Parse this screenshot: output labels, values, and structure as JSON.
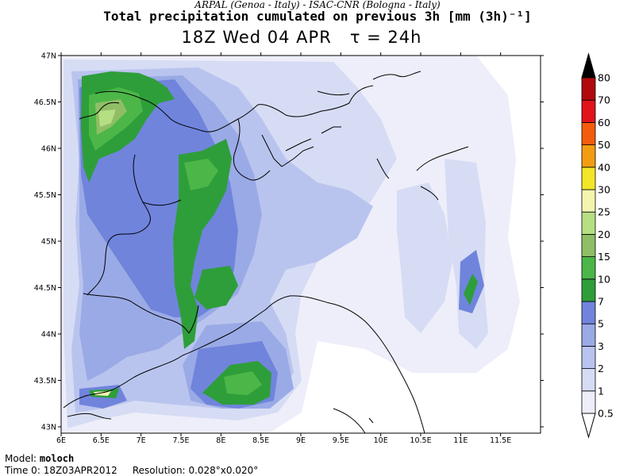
{
  "header": {
    "credit_line": "ARPAL (Genoa - Italy)  -  ISAC-CNR (Bologna - Italy)",
    "title_line": "Total precipitation cumulated on previous 3h [mm (3h)⁻¹]",
    "time_line": "18Z Wed 04 APR",
    "tau_label": "τ = 24h"
  },
  "map": {
    "lat_labels": [
      "47N",
      "46.5N",
      "46N",
      "45.5N",
      "45N",
      "44.5N",
      "44N",
      "43.5N",
      "43N"
    ],
    "lon_labels": [
      "6E",
      "6.5E",
      "7E",
      "7.5E",
      "8E",
      "8.5E",
      "9E",
      "9.5E",
      "10E",
      "10.5E",
      "11E",
      "11.5E"
    ],
    "lat_values": [
      47,
      46.5,
      46,
      45.5,
      45,
      44.5,
      44,
      43.5,
      43
    ],
    "lon_values": [
      6,
      6.5,
      7,
      7.5,
      8,
      8.5,
      9,
      9.5,
      10,
      10.5,
      11,
      11.5
    ]
  },
  "colorbar": {
    "levels": [
      "0.5",
      "1",
      "2",
      "3",
      "5",
      "7",
      "10",
      "15",
      "20",
      "25",
      "30",
      "40",
      "50",
      "60",
      "70",
      "80"
    ],
    "colors": [
      "#eeeefa",
      "#d6dcf4",
      "#b9c4ee",
      "#9aaae6",
      "#7084dc",
      "#2e9e3a",
      "#4cb648",
      "#8fbe66",
      "#b6de82",
      "#f4f4b0",
      "#f2e62a",
      "#f29c14",
      "#f25c0c",
      "#e0141a",
      "#b00a0e",
      "#800a0a"
    ],
    "top_color": "#000000"
  },
  "footer": {
    "model_label": "Model:",
    "model_value": "moloch",
    "time0_label": "Time 0:",
    "time0_value": "18Z03APR2012",
    "resolution_label": "Resolution:",
    "resolution_value": "0.028°x0.020°"
  }
}
